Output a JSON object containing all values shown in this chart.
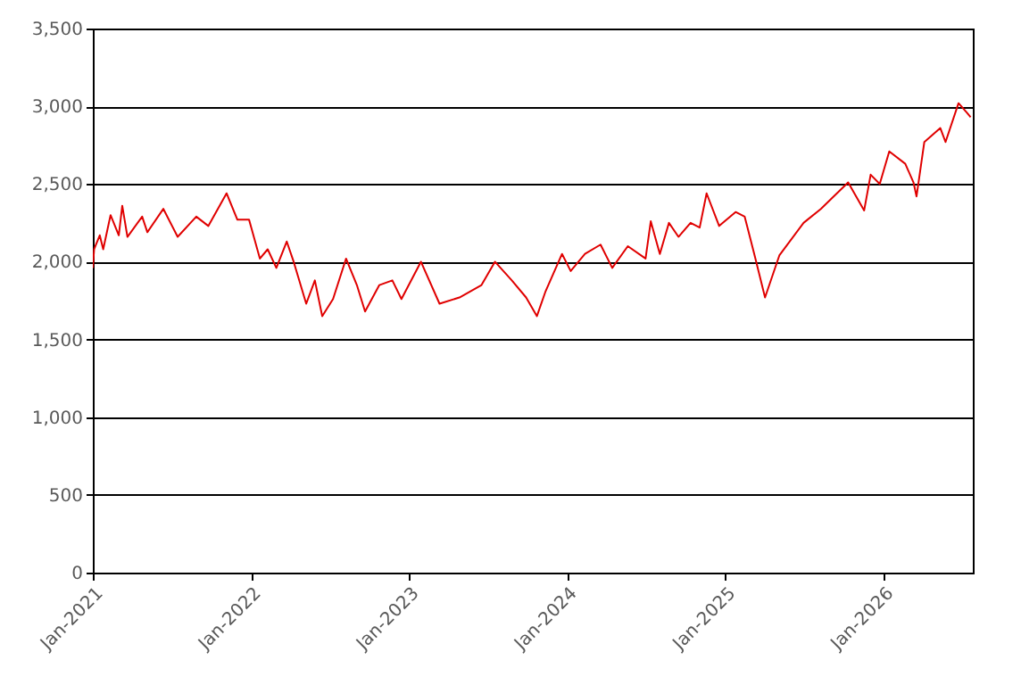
{
  "chart_data": {
    "type": "line",
    "x": [
      "2021-01-01",
      "2021-01-04",
      "2021-01-17",
      "2021-01-25",
      "2021-02-11",
      "2021-03-02",
      "2021-03-10",
      "2021-03-22",
      "2021-04-25",
      "2021-05-07",
      "2021-06-13",
      "2021-07-16",
      "2021-08-28",
      "2021-09-25",
      "2021-11-06",
      "2021-12-01",
      "2021-12-28",
      "2022-01-22",
      "2022-02-09",
      "2022-03-01",
      "2022-03-25",
      "2022-04-10",
      "2022-05-09",
      "2022-05-29",
      "2022-06-15",
      "2022-07-10",
      "2022-08-09",
      "2022-09-03",
      "2022-09-22",
      "2022-10-25",
      "2022-11-24",
      "2022-12-15",
      "2023-01-29",
      "2023-03-13",
      "2023-04-28",
      "2023-06-18",
      "2023-07-19",
      "2023-08-27",
      "2023-09-29",
      "2023-10-24",
      "2023-11-13",
      "2023-12-21",
      "2024-01-10",
      "2024-02-12",
      "2024-03-19",
      "2024-04-15",
      "2024-05-21",
      "2024-07-01",
      "2024-07-13",
      "2024-08-03",
      "2024-08-24",
      "2024-09-15",
      "2024-10-13",
      "2024-11-03",
      "2024-11-19",
      "2024-12-18",
      "2025-01-25",
      "2025-02-15",
      "2025-03-10",
      "2025-04-03",
      "2025-05-06",
      "2025-07-01",
      "2025-08-10",
      "2025-10-12",
      "2025-11-18",
      "2025-12-03",
      "2025-12-24",
      "2026-01-15",
      "2026-02-21",
      "2026-03-12",
      "2026-03-19",
      "2026-04-06",
      "2026-05-13",
      "2026-05-25",
      "2026-06-24",
      "2026-07-13",
      "2026-07-22"
    ],
    "series": [
      {
        "color": "#e00000",
        "values": [
          1960,
          2080,
          2170,
          2080,
          2300,
          2170,
          2360,
          2160,
          2290,
          2190,
          2340,
          2160,
          2290,
          2230,
          2440,
          2270,
          2270,
          2020,
          2080,
          1960,
          2130,
          2000,
          1730,
          1880,
          1650,
          1760,
          2020,
          1850,
          1680,
          1850,
          1880,
          1760,
          2000,
          1730,
          1770,
          1850,
          2000,
          1880,
          1770,
          1650,
          1810,
          2050,
          1940,
          2050,
          2110,
          1960,
          2100,
          2020,
          2260,
          2050,
          2250,
          2160,
          2250,
          2220,
          2440,
          2230,
          2320,
          2290,
          2040,
          1770,
          2040,
          2250,
          2340,
          2510,
          2330,
          2560,
          2500,
          2710,
          2630,
          2510,
          2420,
          2770,
          2860,
          2770,
          3020,
          2960,
          2930
        ]
      }
    ],
    "xlim": [
      "2021-01-01",
      "2026-07-27"
    ],
    "xticks": [
      {
        "value": "2021-01-01",
        "label": "Jan-2021"
      },
      {
        "value": "2022-01-01",
        "label": "Jan-2022"
      },
      {
        "value": "2023-01-01",
        "label": "Jan-2023"
      },
      {
        "value": "2024-01-01",
        "label": "Jan-2024"
      },
      {
        "value": "2025-01-01",
        "label": "Jan-2025"
      },
      {
        "value": "2026-01-01",
        "label": "Jan-2026"
      }
    ],
    "ylim": [
      0,
      3500
    ],
    "yticks": [
      {
        "value": 0,
        "label": "0"
      },
      {
        "value": 500,
        "label": "500"
      },
      {
        "value": 1000,
        "label": "1,000"
      },
      {
        "value": 1500,
        "label": "1,500"
      },
      {
        "value": 2000,
        "label": "2,000"
      },
      {
        "value": 2500,
        "label": "2,500"
      },
      {
        "value": 3000,
        "label": "3,000"
      },
      {
        "value": 3500,
        "label": "3,500"
      }
    ],
    "grid": "y"
  }
}
